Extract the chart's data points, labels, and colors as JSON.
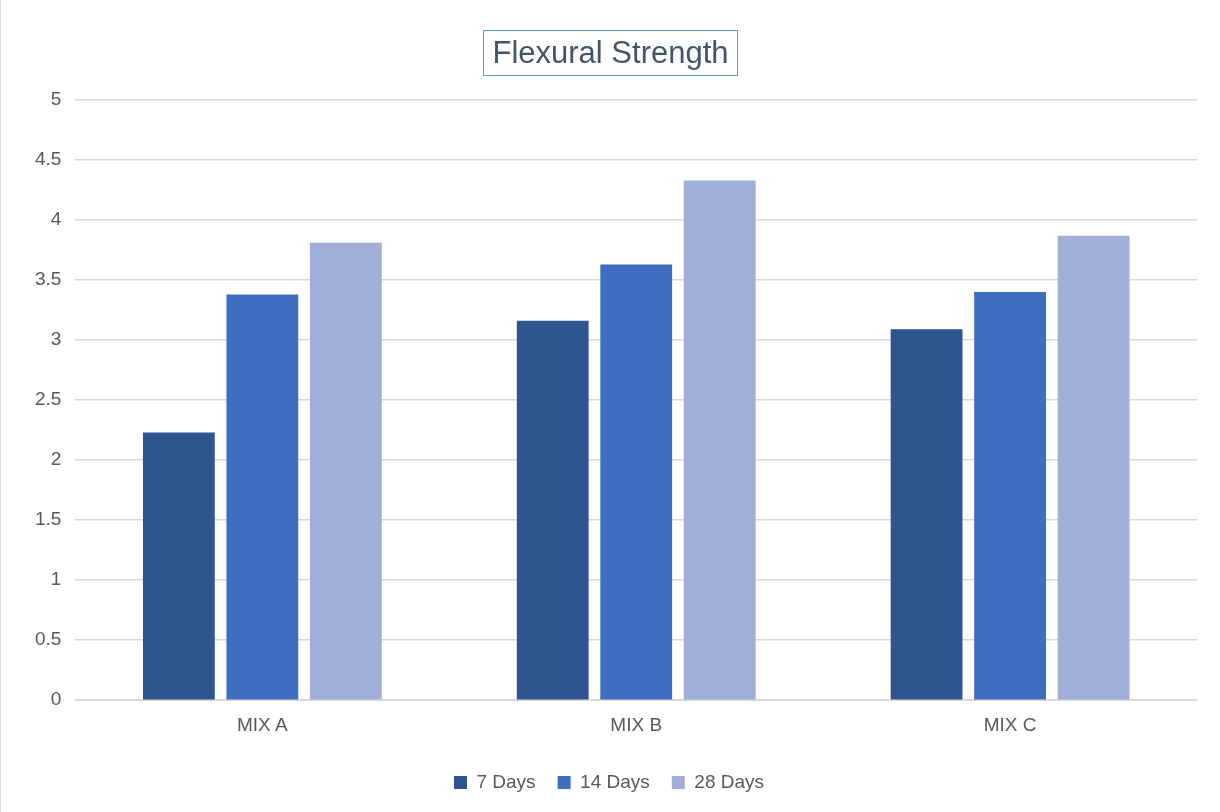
{
  "chart_data": {
    "type": "bar",
    "title": "Flexural Strength",
    "categories": [
      "MIX A",
      "MIX B",
      "MIX C"
    ],
    "series": [
      {
        "name": "7 Days",
        "color": "#2f5591",
        "values": [
          2.23,
          3.16,
          3.09
        ]
      },
      {
        "name": "14 Days",
        "color": "#3f6dbf",
        "values": [
          3.38,
          3.63,
          3.4
        ]
      },
      {
        "name": "28 Days",
        "color": "#a0aed8",
        "values": [
          3.81,
          4.33,
          3.87
        ]
      }
    ],
    "ylim": [
      0,
      5
    ],
    "yticks": [
      0,
      0.5,
      1,
      1.5,
      2,
      2.5,
      3,
      3.5,
      4,
      4.5,
      5
    ],
    "grid": "y",
    "legend": "bottom"
  }
}
